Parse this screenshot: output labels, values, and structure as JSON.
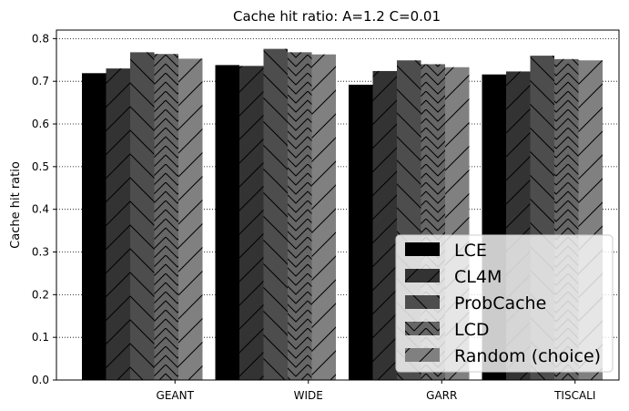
{
  "chart_data": {
    "type": "bar",
    "title": "Cache hit ratio: A=1.2 C=0.01",
    "xlabel": "",
    "ylabel": "Cache hit ratio",
    "ylim": [
      0,
      0.82
    ],
    "yticks": [
      "0.0",
      "0.1",
      "0.2",
      "0.3",
      "0.4",
      "0.5",
      "0.6",
      "0.7",
      "0.8"
    ],
    "grid": "horizontal dotted",
    "legend_position": "lower-right",
    "categories": [
      "GEANT",
      "WIDE",
      "GARR",
      "TISCALI"
    ],
    "series": [
      {
        "name": "LCE",
        "color": "#000000",
        "hatch": "none",
        "values": [
          0.719,
          0.738,
          0.692,
          0.716
        ]
      },
      {
        "name": "CL4M",
        "color": "#333333",
        "hatch": "forward-diagonal",
        "values": [
          0.73,
          0.736,
          0.724,
          0.723
        ]
      },
      {
        "name": "ProbCache",
        "color": "#4d4d4d",
        "hatch": "back-diagonal",
        "values": [
          0.768,
          0.776,
          0.749,
          0.76
        ]
      },
      {
        "name": "LCD",
        "color": "#666666",
        "hatch": "chevron",
        "values": [
          0.764,
          0.768,
          0.74,
          0.752
        ]
      },
      {
        "name": "Random (choice)",
        "color": "#808080",
        "hatch": "forward-diagonal",
        "values": [
          0.753,
          0.763,
          0.733,
          0.749
        ]
      }
    ]
  }
}
